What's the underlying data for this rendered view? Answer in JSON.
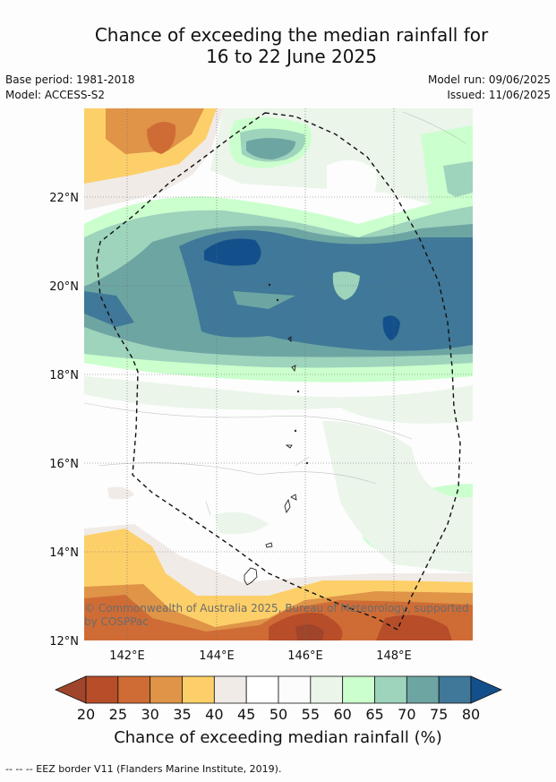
{
  "title": {
    "line1": "Chance of exceeding the median rainfall for",
    "line2": "16 to 22 June 2025"
  },
  "meta": {
    "base_period": "Base period: 1981-2018",
    "model": "Model: ACCESS-S2",
    "model_run": "Model run: 09/06/2025",
    "issued": "Issued: 11/06/2025"
  },
  "map": {
    "lon_labels": [
      "142°E",
      "144°E",
      "146°E",
      "148°E"
    ],
    "lat_labels": [
      "12°N",
      "14°N",
      "16°N",
      "18°N",
      "20°N",
      "22°N"
    ],
    "copyright": "© Commonwealth of Australia 2025, Bureau of Meteorology, supported by COSPPac"
  },
  "colorbar": {
    "ticks": [
      "20",
      "25",
      "30",
      "35",
      "40",
      "45",
      "50",
      "55",
      "60",
      "65",
      "70",
      "75",
      "80"
    ],
    "colors": [
      "#a0452b",
      "#b84d2a",
      "#cf6c35",
      "#df9448",
      "#fdcf69",
      "#f1ebe7",
      "#ffffff",
      "#fcfcfc",
      "#ebf5ea",
      "#cbffcd",
      "#9ed3bc",
      "#6da5a3",
      "#3f7898",
      "#134f8b"
    ],
    "label": "Chance of exceeding median rainfall (%)"
  },
  "footer": "--  --  -- EEZ border V11 (Flanders Marine Institute, 2019)."
}
